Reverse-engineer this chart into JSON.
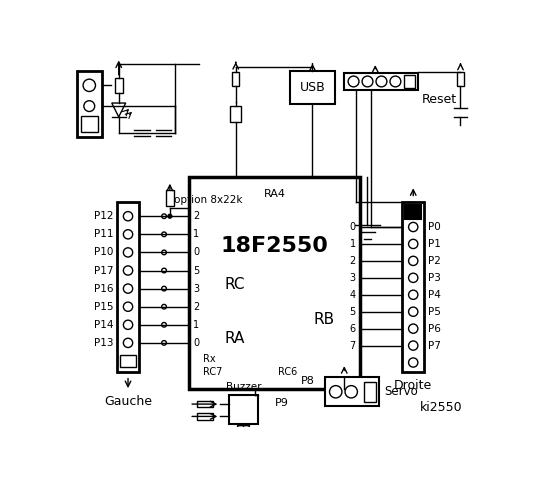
{
  "bg_color": "#ffffff",
  "chip_label": "18F2550",
  "chip_sublabel": "RA4",
  "rc_label": "RC",
  "ra_label": "RA",
  "rb_label": "RB",
  "rc_pins_left": [
    "2",
    "1",
    "0",
    "5",
    "3",
    "2",
    "1",
    "0"
  ],
  "rc_pins_right": [
    "0",
    "1",
    "2",
    "3",
    "4",
    "5",
    "6",
    "7"
  ],
  "left_labels": [
    "P12",
    "P11",
    "P10",
    "P17",
    "P16",
    "P15",
    "P14",
    "P13"
  ],
  "right_labels": [
    "P0",
    "P1",
    "P2",
    "P3",
    "P4",
    "P5",
    "P6",
    "P7"
  ],
  "rx_label": "Rx",
  "rc7_label": "RC7",
  "rc6_label": "RC6",
  "usb_label": "USB",
  "reset_label": "Reset",
  "gauche_label": "Gauche",
  "droite_label": "Droite",
  "buzzer_label": "Buzzer",
  "p9_label": "P9",
  "p8_label": "P8",
  "servo_label": "Servo",
  "ki_label": "ki2550",
  "option_label": "option 8x22k"
}
